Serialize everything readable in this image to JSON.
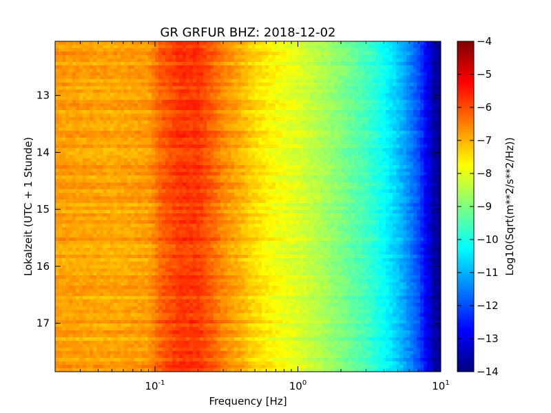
{
  "chart_data": {
    "type": "heatmap",
    "title": "GR GRFUR BHZ: 2018-12-02",
    "xlabel": "Frequency [Hz]",
    "ylabel": "Lokalzeit (UTC + 1 Stunde)",
    "x_scale": "log",
    "xlim": [
      0.02,
      10
    ],
    "x_ticks": [
      {
        "value": 0.1,
        "base": "10",
        "exp": "-1"
      },
      {
        "value": 1,
        "base": "10",
        "exp": "0"
      },
      {
        "value": 10,
        "base": "10",
        "exp": "1"
      }
    ],
    "ylim": [
      12.05,
      17.85
    ],
    "y_inverted": true,
    "y_ticks": [
      {
        "value": 13,
        "label": "13"
      },
      {
        "value": 14,
        "label": "14"
      },
      {
        "value": 15,
        "label": "15"
      },
      {
        "value": 16,
        "label": "16"
      },
      {
        "value": 17,
        "label": "17"
      }
    ],
    "colormap": "jet",
    "colorbar": {
      "label": "Log10(Sqrt(m**2/s**2/Hz))",
      "range": [
        -14,
        -4
      ],
      "ticks": [
        {
          "value": -4,
          "label": "−4"
        },
        {
          "value": -5,
          "label": "−5"
        },
        {
          "value": -6,
          "label": "−6"
        },
        {
          "value": -7,
          "label": "−7"
        },
        {
          "value": -8,
          "label": "−8"
        },
        {
          "value": -9,
          "label": "−9"
        },
        {
          "value": -10,
          "label": "−10"
        },
        {
          "value": -11,
          "label": "−11"
        },
        {
          "value": -12,
          "label": "−12"
        },
        {
          "value": -13,
          "label": "−13"
        },
        {
          "value": -14,
          "label": "−14"
        }
      ]
    },
    "spectrum_profile": {
      "frequency": [
        0.02,
        0.05,
        0.09,
        0.11,
        0.15,
        0.2,
        0.25,
        0.3,
        0.4,
        0.5,
        0.7,
        1.0,
        1.5,
        2.0,
        3.0,
        4.0,
        5.0,
        6.0,
        7.0,
        8.0,
        9.0,
        10.0
      ],
      "level": [
        -6.8,
        -6.9,
        -6.8,
        -6.2,
        -5.8,
        -5.8,
        -6.2,
        -6.6,
        -7.0,
        -7.4,
        -7.8,
        -8.1,
        -8.6,
        -9.0,
        -9.6,
        -10.2,
        -10.8,
        -11.4,
        -12.0,
        -12.9,
        -13.6,
        -14.0
      ]
    }
  }
}
